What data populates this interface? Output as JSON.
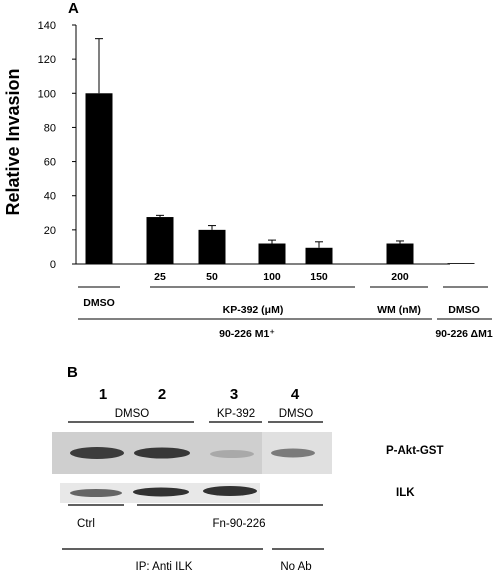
{
  "panel_a": {
    "label": "A"
  },
  "panel_b": {
    "label": "B",
    "lanes": [
      "1",
      "2",
      "3",
      "4"
    ],
    "treatments": [
      "DMSO",
      "KP-392",
      "DMSO"
    ],
    "band_labels": [
      "P-Akt-GST",
      "ILK"
    ],
    "sample_labels": [
      "Ctrl",
      "Fn-90-226"
    ],
    "ip_labels": [
      "IP: Anti ILK",
      "No Ab"
    ]
  },
  "chart_data": {
    "type": "bar",
    "title": "",
    "xlabel": "",
    "ylabel": "Relative Invasion",
    "ylim": [
      0,
      140
    ],
    "yticks": [
      0,
      20,
      40,
      60,
      80,
      100,
      120,
      140
    ],
    "categories": [
      "",
      "25",
      "50",
      "100",
      "150",
      "200",
      ""
    ],
    "values": [
      100,
      27.5,
      20,
      12,
      9.5,
      12,
      0.5
    ],
    "error": [
      32,
      1,
      2.5,
      2,
      3.5,
      1.5,
      0
    ],
    "colors": {
      "bar": "#000000",
      "axis": "#000000"
    },
    "group_labels": [
      {
        "text": "DMSO"
      },
      {
        "text": "KP-392 (μM)"
      },
      {
        "text": "WM (nM)"
      },
      {
        "text": "DMSO"
      },
      {
        "text": "90-226 M1⁺"
      },
      {
        "text": "90-226 ΔM1"
      }
    ]
  }
}
